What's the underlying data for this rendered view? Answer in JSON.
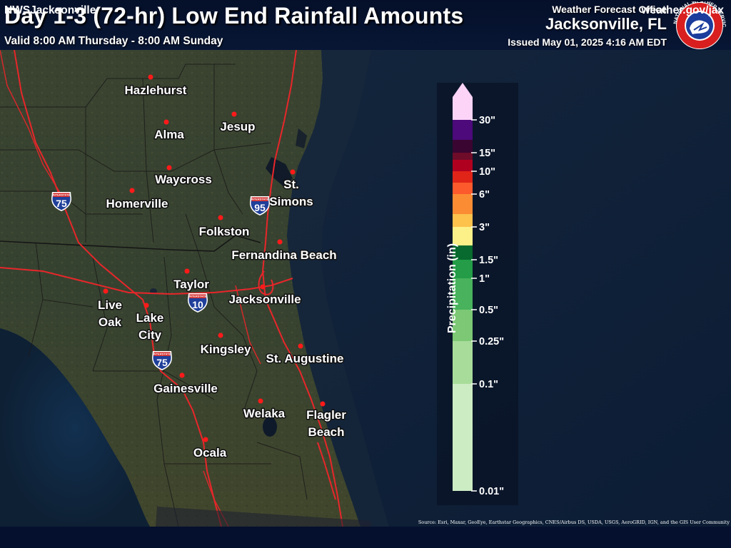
{
  "header": {
    "title": "Day 1-3 (72-hr) Low End Rainfall Amounts",
    "valid": "Valid 8:00 AM Thursday - 8:00 AM Sunday",
    "office_label": "Weather Forecast Office",
    "office_city": "Jacksonville, FL",
    "issued": "Issued May 01, 2025 4:16 AM EDT"
  },
  "logo": {
    "icon": "nws-logo",
    "text": "NATIONAL WEATHER SERVICE"
  },
  "cities": [
    {
      "id": "hazlehurst",
      "lines": [
        "Hazlehurst"
      ]
    },
    {
      "id": "alma",
      "lines": [
        "Alma"
      ]
    },
    {
      "id": "jesup",
      "lines": [
        "Jesup"
      ]
    },
    {
      "id": "waycross",
      "lines": [
        "Waycross"
      ]
    },
    {
      "id": "homerville",
      "lines": [
        "Homerville"
      ]
    },
    {
      "id": "st-simons",
      "lines": [
        "St.",
        "Simons"
      ]
    },
    {
      "id": "folkston",
      "lines": [
        "Folkston"
      ]
    },
    {
      "id": "fernandina-beach",
      "lines": [
        "Fernandina Beach"
      ]
    },
    {
      "id": "taylor",
      "lines": [
        "Taylor"
      ]
    },
    {
      "id": "jacksonville",
      "lines": [
        "Jacksonville"
      ]
    },
    {
      "id": "live-oak",
      "lines": [
        "Live",
        "Oak"
      ]
    },
    {
      "id": "lake-city",
      "lines": [
        "Lake",
        "City"
      ]
    },
    {
      "id": "kingsley",
      "lines": [
        "Kingsley"
      ]
    },
    {
      "id": "st-augustine",
      "lines": [
        "St. Augustine"
      ]
    },
    {
      "id": "gainesville",
      "lines": [
        "Gainesville"
      ]
    },
    {
      "id": "welaka",
      "lines": [
        "Welaka"
      ]
    },
    {
      "id": "flagler-beach",
      "lines": [
        "Flagler",
        "Beach"
      ]
    },
    {
      "id": "ocala",
      "lines": [
        "Ocala"
      ]
    }
  ],
  "city_marker_color": "#ff1a1a",
  "highways": [
    {
      "id": "i75-north",
      "number": "75"
    },
    {
      "id": "i95",
      "number": "95"
    },
    {
      "id": "i10",
      "number": "10"
    },
    {
      "id": "i75-south",
      "number": "75"
    }
  ],
  "shield_top_text": "INTERSTATE",
  "legend": {
    "title": "Precipitation (in)",
    "ticks": [
      "30\"",
      "15\"",
      "10\"",
      "6\"",
      "3\"",
      "1.5\"",
      "1\"",
      "0.5\"",
      "0.25\"",
      "0.1\"",
      "0.01\""
    ],
    "colors": [
      "#fcd4f8",
      "#4c0a7a",
      "#3a0530",
      "#6e0c2a",
      "#b00020",
      "#e02418",
      "#fc5a2c",
      "#fc8c34",
      "#fcc24c",
      "#fcf088",
      "#086a2e",
      "#249c48",
      "#48b25c",
      "#7cc874",
      "#a8dc9a",
      "#ccecc4"
    ]
  },
  "footer": {
    "left": "NWSJacksonville",
    "right": "weather.gov/jax",
    "credit": "Source: Esri, Maxar, GeoEye, Earthstar Geographics, CNES/Airbus DS, USDA, USGS, AeroGRID, IGN, and the GIS User Community"
  }
}
